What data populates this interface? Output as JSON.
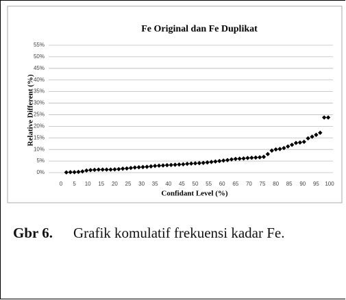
{
  "chart_data": {
    "type": "scatter",
    "title": "Fe Original dan Fe Duplikat",
    "x_label": "Confidant Level (%)",
    "y_label": "Relative Different (%)",
    "x": [
      2,
      3.5,
      5,
      6.5,
      8,
      9.5,
      11,
      12.5,
      14,
      15.5,
      17,
      18.5,
      20,
      21.5,
      23,
      24.5,
      26,
      27.5,
      29,
      30.5,
      32,
      33.5,
      35,
      36.5,
      38,
      39.5,
      41,
      42.5,
      44,
      45.5,
      47,
      48.5,
      50,
      51.5,
      53,
      54.5,
      56,
      57.5,
      59,
      60.5,
      62,
      63.5,
      65,
      66.5,
      68,
      69.5,
      71,
      72.5,
      74,
      75.5,
      77,
      78.5,
      80,
      81.5,
      83,
      84.5,
      86,
      87.5,
      89,
      90.5,
      92,
      93.5,
      95,
      96.5,
      98,
      99.5
    ],
    "values": [
      0.1,
      0.2,
      0.2,
      0.3,
      0.5,
      0.9,
      1.1,
      1.2,
      1.3,
      1.3,
      1.3,
      1.3,
      1.4,
      1.5,
      1.7,
      1.8,
      2.0,
      2.2,
      2.3,
      2.4,
      2.5,
      2.7,
      2.9,
      3.0,
      3.1,
      3.2,
      3.3,
      3.4,
      3.5,
      3.6,
      3.8,
      3.9,
      4.0,
      4.1,
      4.2,
      4.4,
      4.6,
      4.8,
      5.0,
      5.2,
      5.4,
      5.7,
      5.9,
      6.0,
      6.1,
      6.3,
      6.4,
      6.5,
      6.6,
      6.8,
      8.0,
      9.5,
      10.0,
      10.2,
      10.6,
      11.3,
      12.0,
      12.8,
      13.0,
      13.3,
      14.8,
      15.5,
      16.3,
      17.2,
      23.8,
      23.8
    ],
    "color": "#000000",
    "xlim": [
      0,
      100
    ],
    "xticks": [
      0,
      5,
      10,
      15,
      20,
      25,
      30,
      35,
      40,
      45,
      50,
      55,
      60,
      65,
      70,
      75,
      80,
      85,
      90,
      95,
      100
    ],
    "ylim": [
      0,
      55
    ],
    "yticks": [
      {
        "value": 0,
        "label": "0%"
      },
      {
        "value": 5,
        "label": "5%"
      },
      {
        "value": 10,
        "label": "10%"
      },
      {
        "value": 15,
        "label": "15%"
      },
      {
        "value": 20,
        "label": "20%"
      },
      {
        "value": 25,
        "label": "25%"
      },
      {
        "value": 30,
        "label": "30%"
      },
      {
        "value": 35,
        "label": "35%"
      },
      {
        "value": 40,
        "label": "40%"
      },
      {
        "value": 45,
        "label": "45%"
      },
      {
        "value": 50,
        "label": "50%"
      },
      {
        "value": 55,
        "label": "55%"
      }
    ],
    "grid": true
  },
  "caption": {
    "label": "Gbr 6.",
    "text": "Grafik komulatif frekuensi kadar Fe."
  }
}
